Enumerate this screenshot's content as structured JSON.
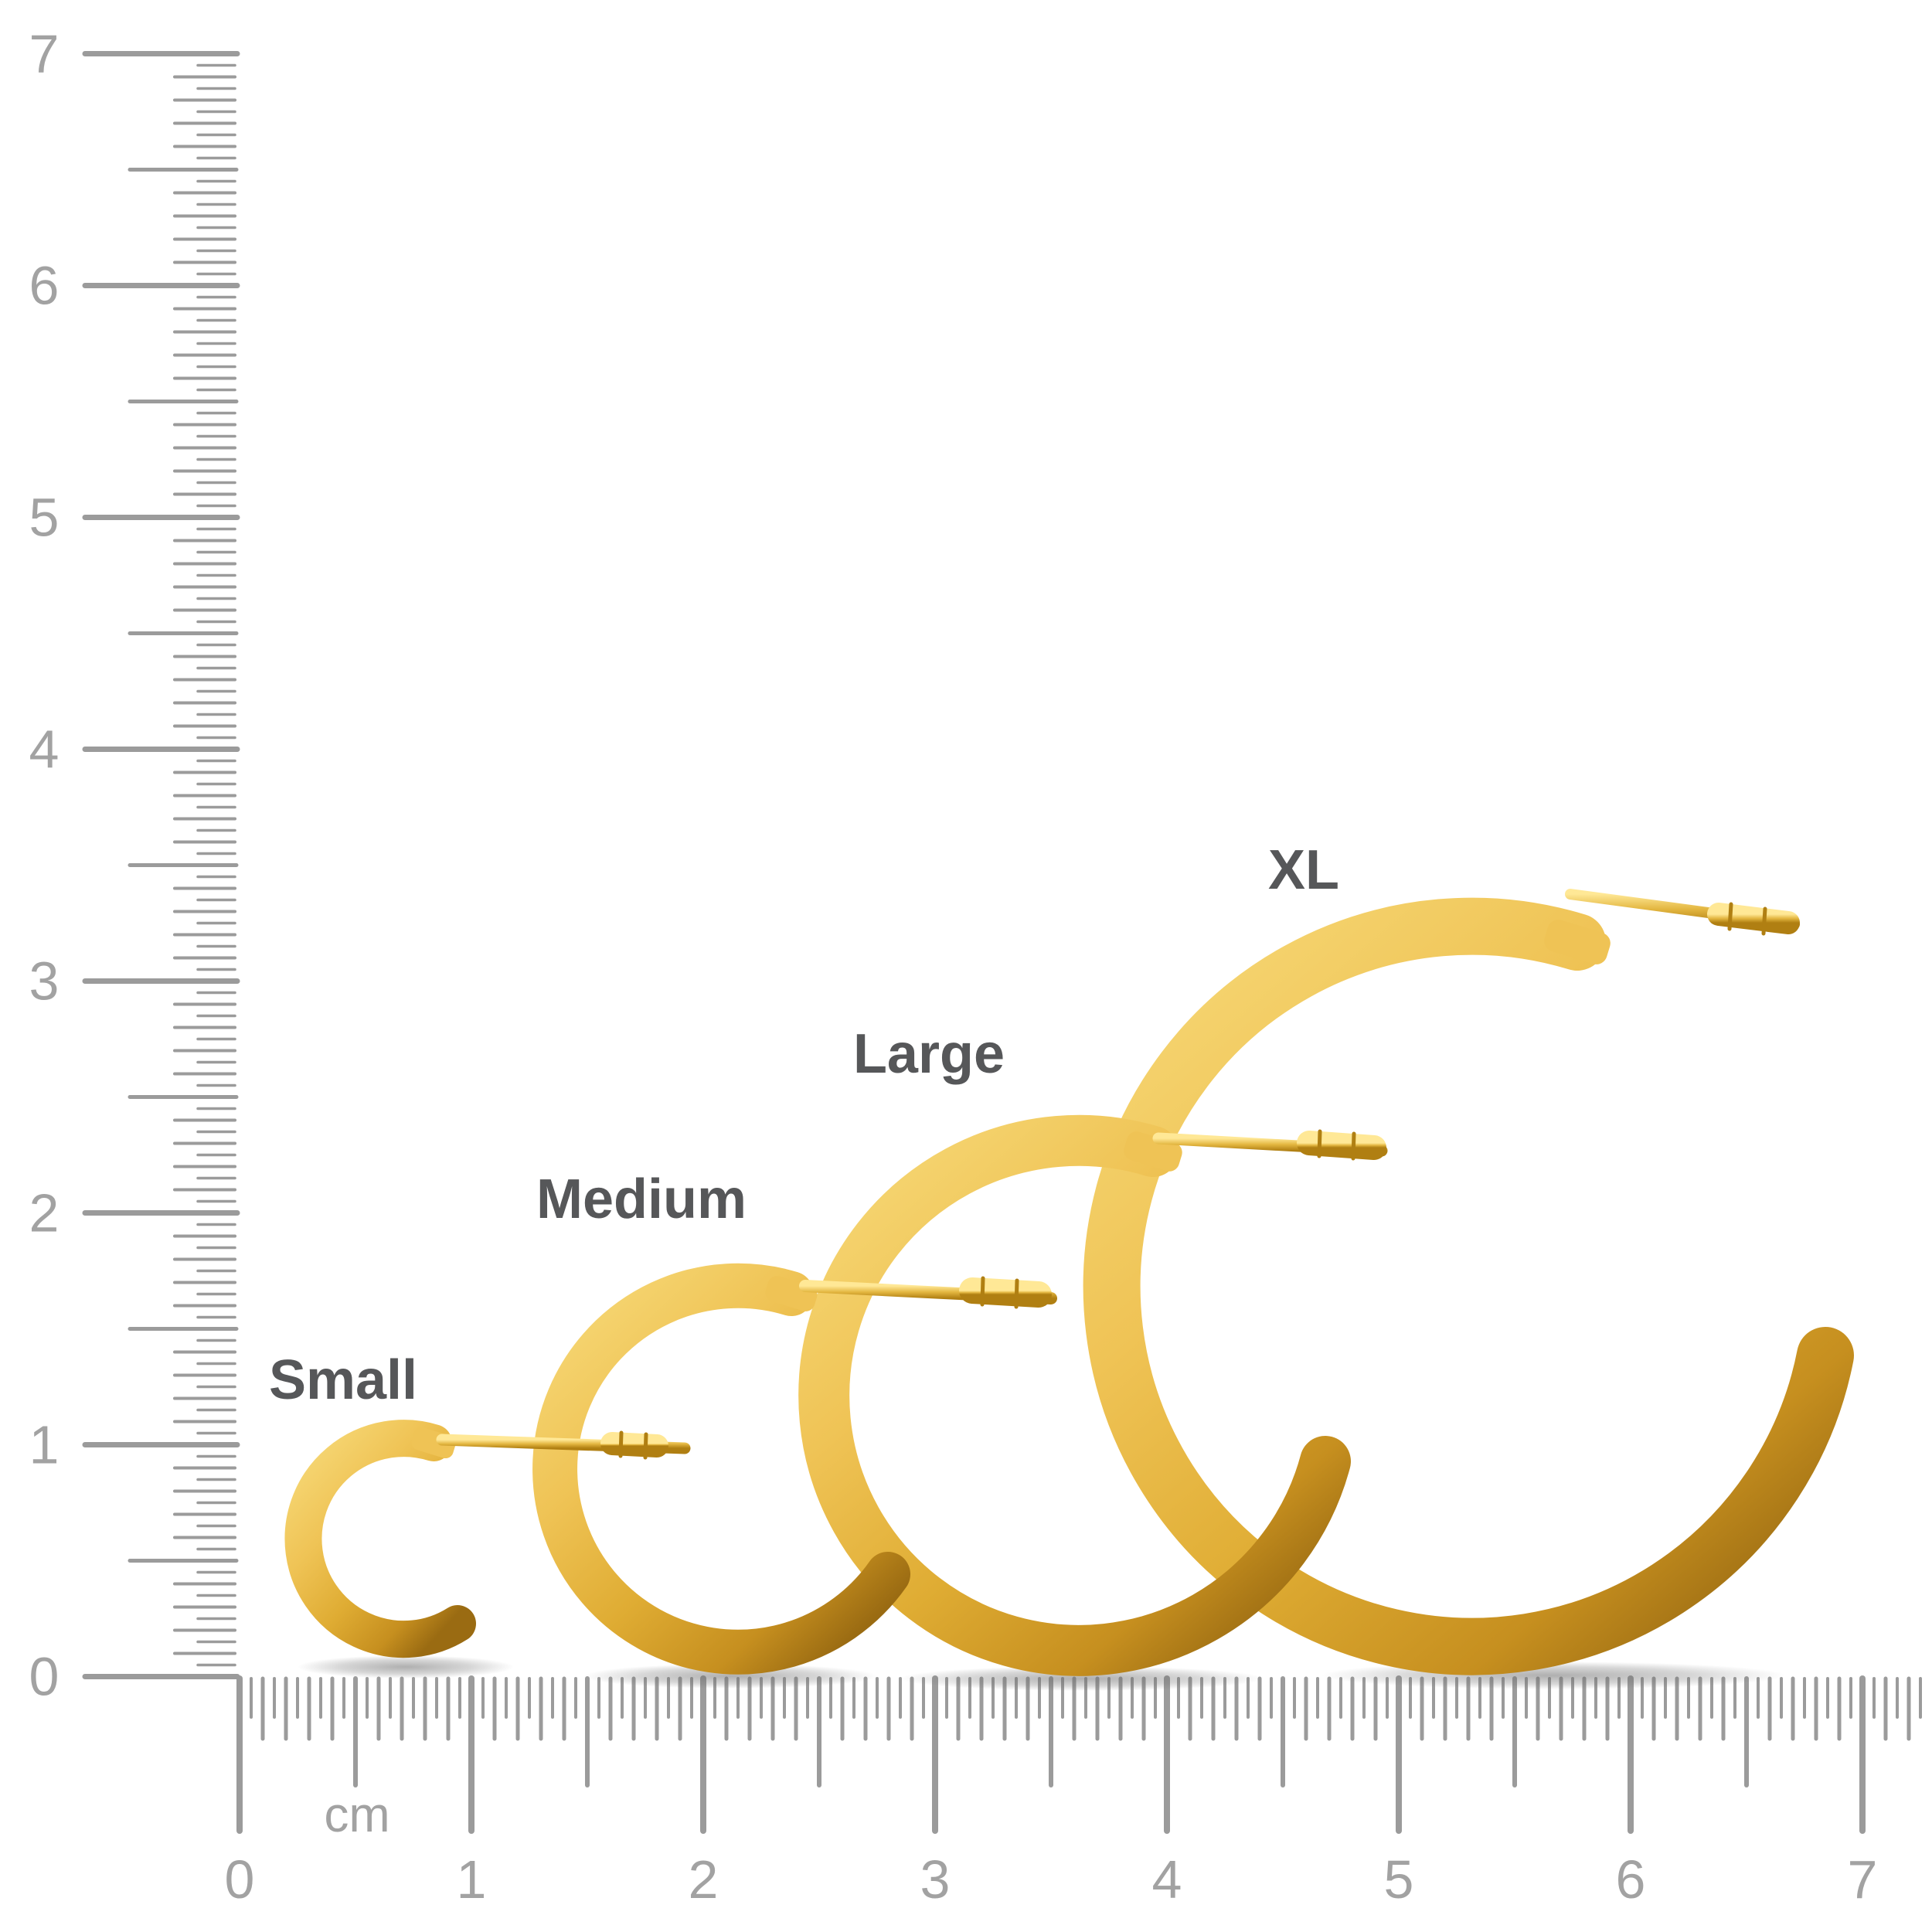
{
  "page": {
    "background": "#ffffff"
  },
  "sizes": [
    {
      "label": "Small"
    },
    {
      "label": "Medium"
    },
    {
      "label": "Large"
    },
    {
      "label": "XL"
    }
  ],
  "vertical_ruler": {
    "numbers": [
      "7",
      "6",
      "5",
      "4",
      "3",
      "2",
      "1",
      "0"
    ]
  },
  "horizontal_ruler": {
    "numbers": [
      "0",
      "1",
      "2",
      "3",
      "4",
      "5",
      "6",
      "7"
    ],
    "unit_label": "cm"
  },
  "colors": {
    "tick": "#9b9b9b",
    "ruler_number": "#a2a2a2",
    "label_text": "#565759",
    "gold_highlight": "#f7da79",
    "gold_light": "#efc355",
    "gold_base": "#dfac33",
    "gold_mid": "#c68f1f",
    "gold_dark": "#9a6b12",
    "post_highlight": "#ffe896",
    "post_base": "#e3b640",
    "post_dark": "#b07f12",
    "shadow": "#6e6e6e"
  }
}
